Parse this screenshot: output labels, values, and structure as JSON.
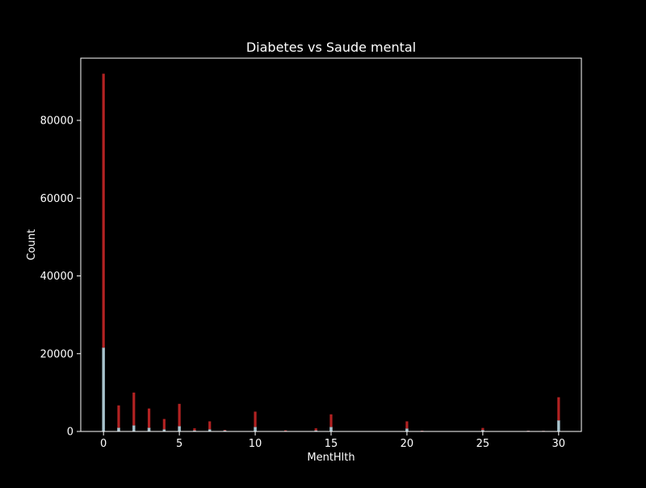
{
  "chart_data": {
    "type": "bar",
    "title": "Diabetes vs Saude mental",
    "xlabel": "MentHlth",
    "ylabel": "Count",
    "xlim": [
      -1.5,
      31.5
    ],
    "ylim": [
      0,
      96000
    ],
    "xticks": [
      0,
      5,
      10,
      15,
      20,
      25,
      30
    ],
    "yticks": [
      0,
      20000,
      40000,
      60000,
      80000
    ],
    "grid": false,
    "legend": "none",
    "series": [
      {
        "color": "#b22222",
        "points": [
          {
            "x": 0,
            "y": 92000
          },
          {
            "x": 1,
            "y": 6700
          },
          {
            "x": 2,
            "y": 10000
          },
          {
            "x": 3,
            "y": 5900
          },
          {
            "x": 4,
            "y": 3200
          },
          {
            "x": 5,
            "y": 7100
          },
          {
            "x": 6,
            "y": 800
          },
          {
            "x": 7,
            "y": 2600
          },
          {
            "x": 8,
            "y": 400
          },
          {
            "x": 10,
            "y": 5100
          },
          {
            "x": 12,
            "y": 300
          },
          {
            "x": 14,
            "y": 800
          },
          {
            "x": 15,
            "y": 4400
          },
          {
            "x": 20,
            "y": 2600
          },
          {
            "x": 21,
            "y": 200
          },
          {
            "x": 25,
            "y": 900
          },
          {
            "x": 28,
            "y": 200
          },
          {
            "x": 29,
            "y": 150
          },
          {
            "x": 30,
            "y": 8800
          }
        ]
      },
      {
        "color": "#a9c3cc",
        "points": [
          {
            "x": 0,
            "y": 21500
          },
          {
            "x": 1,
            "y": 900
          },
          {
            "x": 2,
            "y": 1500
          },
          {
            "x": 3,
            "y": 900
          },
          {
            "x": 4,
            "y": 500
          },
          {
            "x": 5,
            "y": 1300
          },
          {
            "x": 6,
            "y": 200
          },
          {
            "x": 7,
            "y": 500
          },
          {
            "x": 8,
            "y": 200
          },
          {
            "x": 10,
            "y": 1100
          },
          {
            "x": 12,
            "y": 80
          },
          {
            "x": 14,
            "y": 200
          },
          {
            "x": 15,
            "y": 1100
          },
          {
            "x": 20,
            "y": 700
          },
          {
            "x": 21,
            "y": 80
          },
          {
            "x": 25,
            "y": 300
          },
          {
            "x": 28,
            "y": 100
          },
          {
            "x": 29,
            "y": 80
          },
          {
            "x": 30,
            "y": 2800
          }
        ]
      }
    ]
  }
}
